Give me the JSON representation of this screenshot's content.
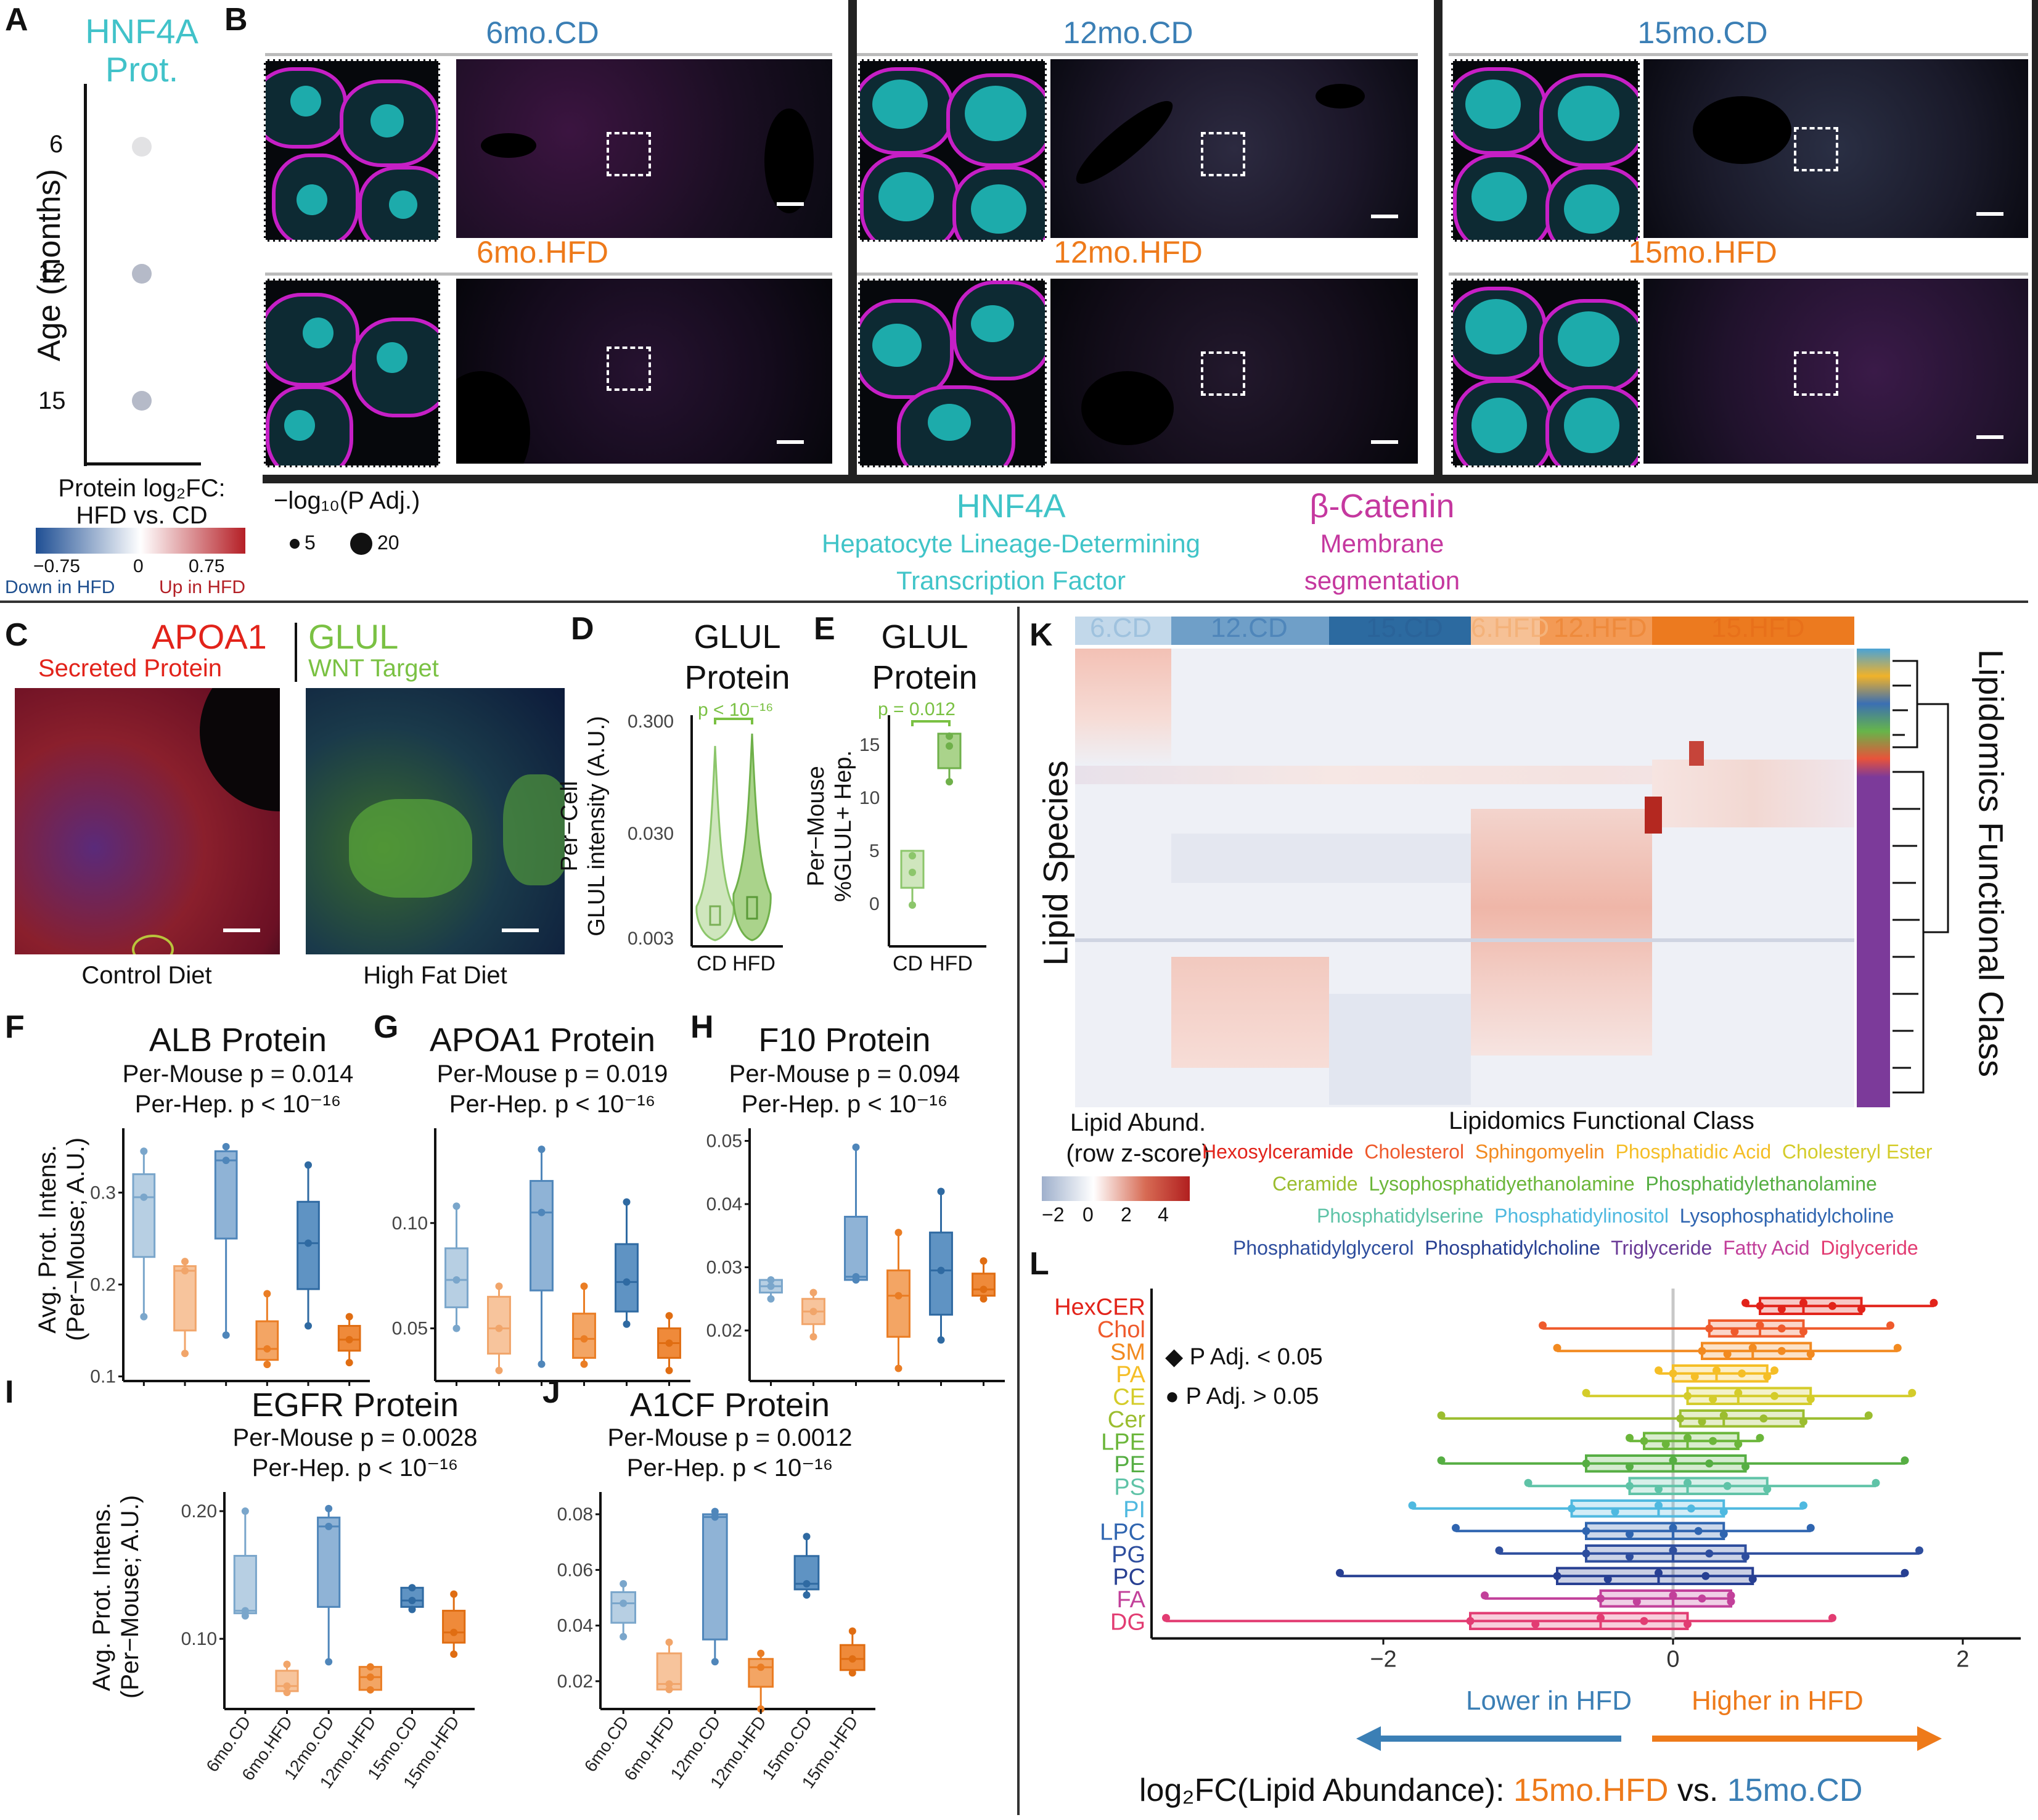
{
  "panel_letters": {
    "a": "A",
    "b": "B",
    "c": "C",
    "d": "D",
    "e": "E",
    "f": "F",
    "g": "G",
    "h": "H",
    "i": "I",
    "j": "J",
    "k": "K",
    "l": "L"
  },
  "panel_a": {
    "title_line1": "HNF4A",
    "title_line2": "Prot.",
    "ylabel": "Age (months)",
    "ticks": [
      "6",
      "12",
      "15"
    ],
    "legend_title_line1": "Protein log₂FC:",
    "legend_title_line2": "HFD vs. CD",
    "legend_ticks": [
      "−0.75",
      "0",
      "0.75"
    ],
    "legend_low": "Down in HFD",
    "legend_high": "Up in HFD",
    "size_legend_title": "−log₁₀(P Adj.)",
    "size_legend_values": [
      "5",
      "20"
    ]
  },
  "panel_b": {
    "conditions_cd": [
      "6mo.CD",
      "12mo.CD",
      "15mo.CD"
    ],
    "conditions_hfd": [
      "6mo.HFD",
      "12mo.HFD",
      "15mo.HFD"
    ],
    "hnf4a": "HNF4A",
    "hnf4a_sub1": "Hepatocyte Lineage-Determining",
    "hnf4a_sub2": "Transcription Factor",
    "bcat": "β-Catenin",
    "bcat_sub1": "Membrane",
    "bcat_sub2": "segmentation",
    "colors": {
      "cd": "#3b7fb5",
      "hfd": "#ee7a1a",
      "hnf4a": "#40c4c8",
      "bcat": "#c5389f"
    }
  },
  "panel_c": {
    "apoa1": "APOA1",
    "apoa1_sub": "Secreted Protein",
    "glul": "GLUL",
    "glul_sub": "WNT Target",
    "left_caption": "Control Diet",
    "right_caption": "High Fat Diet"
  },
  "panel_d": {
    "title_line1": "GLUL",
    "title_line2": "Protein",
    "ylabel_line1": "Per−Cell",
    "ylabel_line2": "GLUL intensity (A.U.)",
    "pvalue": "p < 10⁻¹⁶",
    "yticks": [
      "0.300",
      "0.030",
      "0.003"
    ],
    "xticks": [
      "CD",
      "HFD"
    ]
  },
  "panel_e": {
    "title_line1": "GLUL",
    "title_line2": "Protein",
    "ylabel_line1": "Per−Mouse",
    "ylabel_line2": "%GLUL+ Hep.",
    "pvalue": "p = 0.012",
    "yticks": [
      "15",
      "10",
      "5",
      "0"
    ],
    "xticks": [
      "CD",
      "HFD"
    ]
  },
  "box_panels": {
    "ylabel_line1": "Avg. Prot. Intens.",
    "ylabel_line2": "(Per−Mouse; A.U.)",
    "xticks": [
      "6mo.CD",
      "6mo.HFD",
      "12mo.CD",
      "12mo.HFD",
      "15mo.CD",
      "15mo.HFD"
    ],
    "f": {
      "title": "ALB Protein",
      "sub1": "Per-Mouse p = 0.014",
      "sub2": "Per-Hep. p < 10⁻¹⁶",
      "yticks": [
        "0.3",
        "0.2",
        "0.1"
      ]
    },
    "g": {
      "title": "APOA1 Protein",
      "sub1": "Per-Mouse p = 0.019",
      "sub2": "Per-Hep. p < 10⁻¹⁶",
      "yticks": [
        "0.10",
        "0.05"
      ]
    },
    "h": {
      "title": "F10 Protein",
      "sub1": "Per-Mouse p = 0.094",
      "sub2": "Per-Hep. p < 10⁻¹⁶",
      "yticks": [
        "0.05",
        "0.04",
        "0.03",
        "0.02"
      ]
    },
    "i": {
      "title": "EGFR Protein",
      "sub1": "Per-Mouse p = 0.0028",
      "sub2": "Per-Hep. p < 10⁻¹⁶",
      "yticks": [
        "0.20",
        "0.10"
      ]
    },
    "j": {
      "title": "A1CF Protein",
      "sub1": "Per-Mouse p = 0.0012",
      "sub2": "Per-Hep. p < 10⁻¹⁶",
      "yticks": [
        "0.08",
        "0.06",
        "0.04",
        "0.02"
      ]
    }
  },
  "panel_k": {
    "groups": [
      "6.CD",
      "12.CD",
      "15.CD",
      "6.HFD",
      "12.HFD",
      "15.HFD"
    ],
    "ylabel": "Lipid Species",
    "right_label": "Lipidomics Functional Class",
    "legend_title_line1": "Lipid Abund.",
    "legend_title_line2": "(row z-score)",
    "legend_ticks": [
      "−2",
      "0",
      "2",
      "4"
    ],
    "class_legend_title": "Lipidomics Functional Class",
    "class_rows": [
      [
        "Hexosylceramide",
        "Cholesterol",
        "Sphingomyelin",
        "Phosphatidic Acid",
        "Cholesteryl Ester"
      ],
      [
        "Ceramide",
        "Lysophosphatidyethanolamine",
        "Phosphatidylethanolamine"
      ],
      [
        "Phosphatidylserine",
        "Phosphatidylinositol",
        "Lysophosphatidylcholine"
      ],
      [
        "Phosphatidylglycerol",
        "Phosphatidylcholine",
        "Triglyceride",
        "Fatty Acid",
        "Diglyceride"
      ]
    ]
  },
  "panel_l": {
    "classes": [
      "HexCER",
      "Chol",
      "SM",
      "PA",
      "CE",
      "Cer",
      "LPE",
      "PE",
      "PS",
      "PI",
      "LPC",
      "PG",
      "PC",
      "FA",
      "DG"
    ],
    "legend_diamond": "P Adj. < 0.05",
    "legend_circle": "P Adj. > 0.05",
    "xticks": [
      "−2",
      "0",
      "2"
    ],
    "lower": "Lower in HFD",
    "higher": "Higher in HFD",
    "xlabel_prefix": "log₂FC(Lipid Abundance): ",
    "xlabel_hfd": "15mo.HFD",
    "xlabel_vs": " vs. ",
    "xlabel_cd": "15mo.CD"
  },
  "chart_data": [
    {
      "panel": "A",
      "type": "scatter",
      "title": "HNF4A Prot.",
      "ylabel": "Age (months)",
      "y": [
        6,
        12,
        15
      ],
      "log2fc": [
        0.0,
        -0.15,
        -0.15
      ]
    },
    {
      "panel": "D",
      "type": "violin",
      "title": "GLUL Protein",
      "categories": [
        "CD",
        "HFD"
      ],
      "ylim_log": [
        0.003,
        0.3
      ],
      "median": [
        0.0065,
        0.008
      ]
    },
    {
      "panel": "E",
      "type": "box",
      "title": "GLUL Protein",
      "categories": [
        "CD",
        "HFD"
      ],
      "points": [
        [
          0.5,
          3.5,
          5.0
        ],
        [
          11.8,
          14.5,
          16.0
        ]
      ],
      "ylim": [
        0,
        17
      ]
    },
    {
      "panel": "F",
      "type": "box",
      "title": "ALB Protein",
      "categories": [
        "6mo.CD",
        "6mo.HFD",
        "12mo.CD",
        "12mo.HFD",
        "15mo.CD",
        "15mo.HFD"
      ],
      "boxes": [
        {
          "q1": 0.23,
          "med": 0.295,
          "q3": 0.32,
          "lo": 0.165,
          "hi": 0.345
        },
        {
          "q1": 0.15,
          "med": 0.215,
          "q3": 0.22,
          "lo": 0.125,
          "hi": 0.225
        },
        {
          "q1": 0.25,
          "med": 0.335,
          "q3": 0.345,
          "lo": 0.145,
          "hi": 0.35
        },
        {
          "q1": 0.118,
          "med": 0.13,
          "q3": 0.16,
          "lo": 0.113,
          "hi": 0.19
        },
        {
          "q1": 0.195,
          "med": 0.245,
          "q3": 0.29,
          "lo": 0.155,
          "hi": 0.33
        },
        {
          "q1": 0.128,
          "med": 0.14,
          "q3": 0.155,
          "lo": 0.115,
          "hi": 0.165
        }
      ],
      "ylim": [
        0.095,
        0.37
      ]
    },
    {
      "panel": "G",
      "type": "box",
      "title": "APOA1 Protein",
      "categories": [
        "6mo.CD",
        "6mo.HFD",
        "12mo.CD",
        "12mo.HFD",
        "15mo.CD",
        "15mo.HFD"
      ],
      "boxes": [
        {
          "q1": 0.06,
          "med": 0.073,
          "q3": 0.088,
          "lo": 0.05,
          "hi": 0.108
        },
        {
          "q1": 0.038,
          "med": 0.05,
          "q3": 0.065,
          "lo": 0.03,
          "hi": 0.07
        },
        {
          "q1": 0.068,
          "med": 0.105,
          "q3": 0.12,
          "lo": 0.033,
          "hi": 0.135
        },
        {
          "q1": 0.036,
          "med": 0.045,
          "q3": 0.057,
          "lo": 0.033,
          "hi": 0.07
        },
        {
          "q1": 0.058,
          "med": 0.072,
          "q3": 0.09,
          "lo": 0.052,
          "hi": 0.11
        },
        {
          "q1": 0.036,
          "med": 0.043,
          "q3": 0.05,
          "lo": 0.03,
          "hi": 0.056
        }
      ],
      "ylim": [
        0.025,
        0.145
      ]
    },
    {
      "panel": "H",
      "type": "box",
      "title": "F10 Protein",
      "categories": [
        "6mo.CD",
        "6mo.HFD",
        "12mo.CD",
        "12mo.HFD",
        "15mo.CD",
        "15mo.HFD"
      ],
      "boxes": [
        {
          "q1": 0.026,
          "med": 0.027,
          "q3": 0.028,
          "lo": 0.025,
          "hi": 0.028
        },
        {
          "q1": 0.021,
          "med": 0.023,
          "q3": 0.025,
          "lo": 0.019,
          "hi": 0.026
        },
        {
          "q1": 0.028,
          "med": 0.0285,
          "q3": 0.038,
          "lo": 0.028,
          "hi": 0.049
        },
        {
          "q1": 0.019,
          "med": 0.0255,
          "q3": 0.0295,
          "lo": 0.014,
          "hi": 0.0355
        },
        {
          "q1": 0.0225,
          "med": 0.0295,
          "q3": 0.0355,
          "lo": 0.0185,
          "hi": 0.042
        },
        {
          "q1": 0.0255,
          "med": 0.0265,
          "q3": 0.029,
          "lo": 0.025,
          "hi": 0.031
        }
      ],
      "ylim": [
        0.012,
        0.052
      ]
    },
    {
      "panel": "I",
      "type": "box",
      "title": "EGFR Protein",
      "categories": [
        "6mo.CD",
        "6mo.HFD",
        "12mo.CD",
        "12mo.HFD",
        "15mo.CD",
        "15mo.HFD"
      ],
      "boxes": [
        {
          "q1": 0.12,
          "med": 0.122,
          "q3": 0.165,
          "lo": 0.118,
          "hi": 0.2
        },
        {
          "q1": 0.059,
          "med": 0.063,
          "q3": 0.075,
          "lo": 0.058,
          "hi": 0.08
        },
        {
          "q1": 0.125,
          "med": 0.188,
          "q3": 0.195,
          "lo": 0.082,
          "hi": 0.202
        },
        {
          "q1": 0.06,
          "med": 0.07,
          "q3": 0.078,
          "lo": 0.06,
          "hi": 0.078
        },
        {
          "q1": 0.125,
          "med": 0.13,
          "q3": 0.14,
          "lo": 0.123,
          "hi": 0.14
        },
        {
          "q1": 0.097,
          "med": 0.105,
          "q3": 0.122,
          "lo": 0.088,
          "hi": 0.135
        }
      ],
      "ylim": [
        0.045,
        0.215
      ]
    },
    {
      "panel": "J",
      "type": "box",
      "title": "A1CF Protein",
      "categories": [
        "6mo.CD",
        "6mo.HFD",
        "12mo.CD",
        "12mo.HFD",
        "15mo.CD",
        "15mo.HFD"
      ],
      "boxes": [
        {
          "q1": 0.041,
          "med": 0.048,
          "q3": 0.052,
          "lo": 0.036,
          "hi": 0.055
        },
        {
          "q1": 0.017,
          "med": 0.019,
          "q3": 0.03,
          "lo": 0.017,
          "hi": 0.034
        },
        {
          "q1": 0.035,
          "med": 0.079,
          "q3": 0.08,
          "lo": 0.027,
          "hi": 0.081
        },
        {
          "q1": 0.018,
          "med": 0.025,
          "q3": 0.028,
          "lo": 0.01,
          "hi": 0.03
        },
        {
          "q1": 0.053,
          "med": 0.055,
          "q3": 0.065,
          "lo": 0.051,
          "hi": 0.072
        },
        {
          "q1": 0.024,
          "med": 0.028,
          "q3": 0.033,
          "lo": 0.023,
          "hi": 0.038
        }
      ],
      "ylim": [
        0.01,
        0.088
      ]
    },
    {
      "panel": "L",
      "type": "box",
      "title": "",
      "xlabel": "log₂FC(Lipid Abundance): 15mo.HFD vs. 15mo.CD",
      "categories": [
        "HexCER",
        "Chol",
        "SM",
        "PA",
        "CE",
        "Cer",
        "LPE",
        "PE",
        "PS",
        "PI",
        "LPC",
        "PG",
        "PC",
        "FA",
        "DG"
      ],
      "boxes": [
        {
          "q1": 0.6,
          "med": 0.9,
          "q3": 1.3,
          "lo": 0.5,
          "hi": 1.8
        },
        {
          "q1": 0.25,
          "med": 0.6,
          "q3": 0.9,
          "lo": -0.9,
          "hi": 1.5
        },
        {
          "q1": 0.2,
          "med": 0.55,
          "q3": 0.95,
          "lo": -0.8,
          "hi": 1.55
        },
        {
          "q1": 0.0,
          "med": 0.3,
          "q3": 0.65,
          "lo": -0.1,
          "hi": 0.7
        },
        {
          "q1": 0.1,
          "med": 0.45,
          "q3": 0.95,
          "lo": -0.6,
          "hi": 1.65
        },
        {
          "q1": 0.05,
          "med": 0.35,
          "q3": 0.9,
          "lo": -1.6,
          "hi": 1.35
        },
        {
          "q1": -0.2,
          "med": 0.1,
          "q3": 0.45,
          "lo": -0.3,
          "hi": 0.6
        },
        {
          "q1": -0.6,
          "med": 0.0,
          "q3": 0.5,
          "lo": -1.6,
          "hi": 1.6
        },
        {
          "q1": -0.3,
          "med": 0.1,
          "q3": 0.65,
          "lo": -1.0,
          "hi": 1.4
        },
        {
          "q1": -0.7,
          "med": -0.1,
          "q3": 0.35,
          "lo": -1.8,
          "hi": 0.9
        },
        {
          "q1": -0.6,
          "med": 0.0,
          "q3": 0.35,
          "lo": -1.5,
          "hi": 0.95
        },
        {
          "q1": -0.6,
          "med": 0.0,
          "q3": 0.5,
          "lo": -1.2,
          "hi": 1.7
        },
        {
          "q1": -0.8,
          "med": -0.1,
          "q3": 0.55,
          "lo": -2.3,
          "hi": 1.6
        },
        {
          "q1": -0.5,
          "med": 0.0,
          "q3": 0.4,
          "lo": -1.3,
          "hi": 0.4
        },
        {
          "q1": -1.4,
          "med": -0.5,
          "q3": 0.1,
          "lo": -3.5,
          "hi": 1.1
        }
      ],
      "xlim": [
        -3.6,
        2.4
      ]
    }
  ]
}
